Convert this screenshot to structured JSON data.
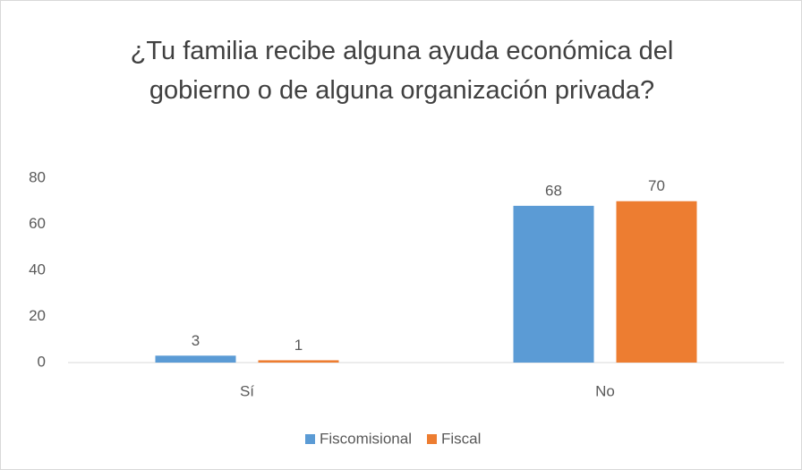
{
  "chart_data": {
    "type": "bar",
    "title": "¿Tu familia recibe alguna ayuda económica del gobierno o de alguna organización privada?",
    "categories": [
      "Sí",
      "No"
    ],
    "series": [
      {
        "name": "Fiscomisional",
        "color": "#5b9bd5",
        "values": [
          3,
          68
        ]
      },
      {
        "name": "Fiscal",
        "color": "#ed7d31",
        "values": [
          1,
          70
        ]
      }
    ],
    "ylim": [
      0,
      80
    ],
    "yticks": [
      0,
      20,
      40,
      60,
      80
    ],
    "grid": false,
    "legend": "bottom"
  }
}
